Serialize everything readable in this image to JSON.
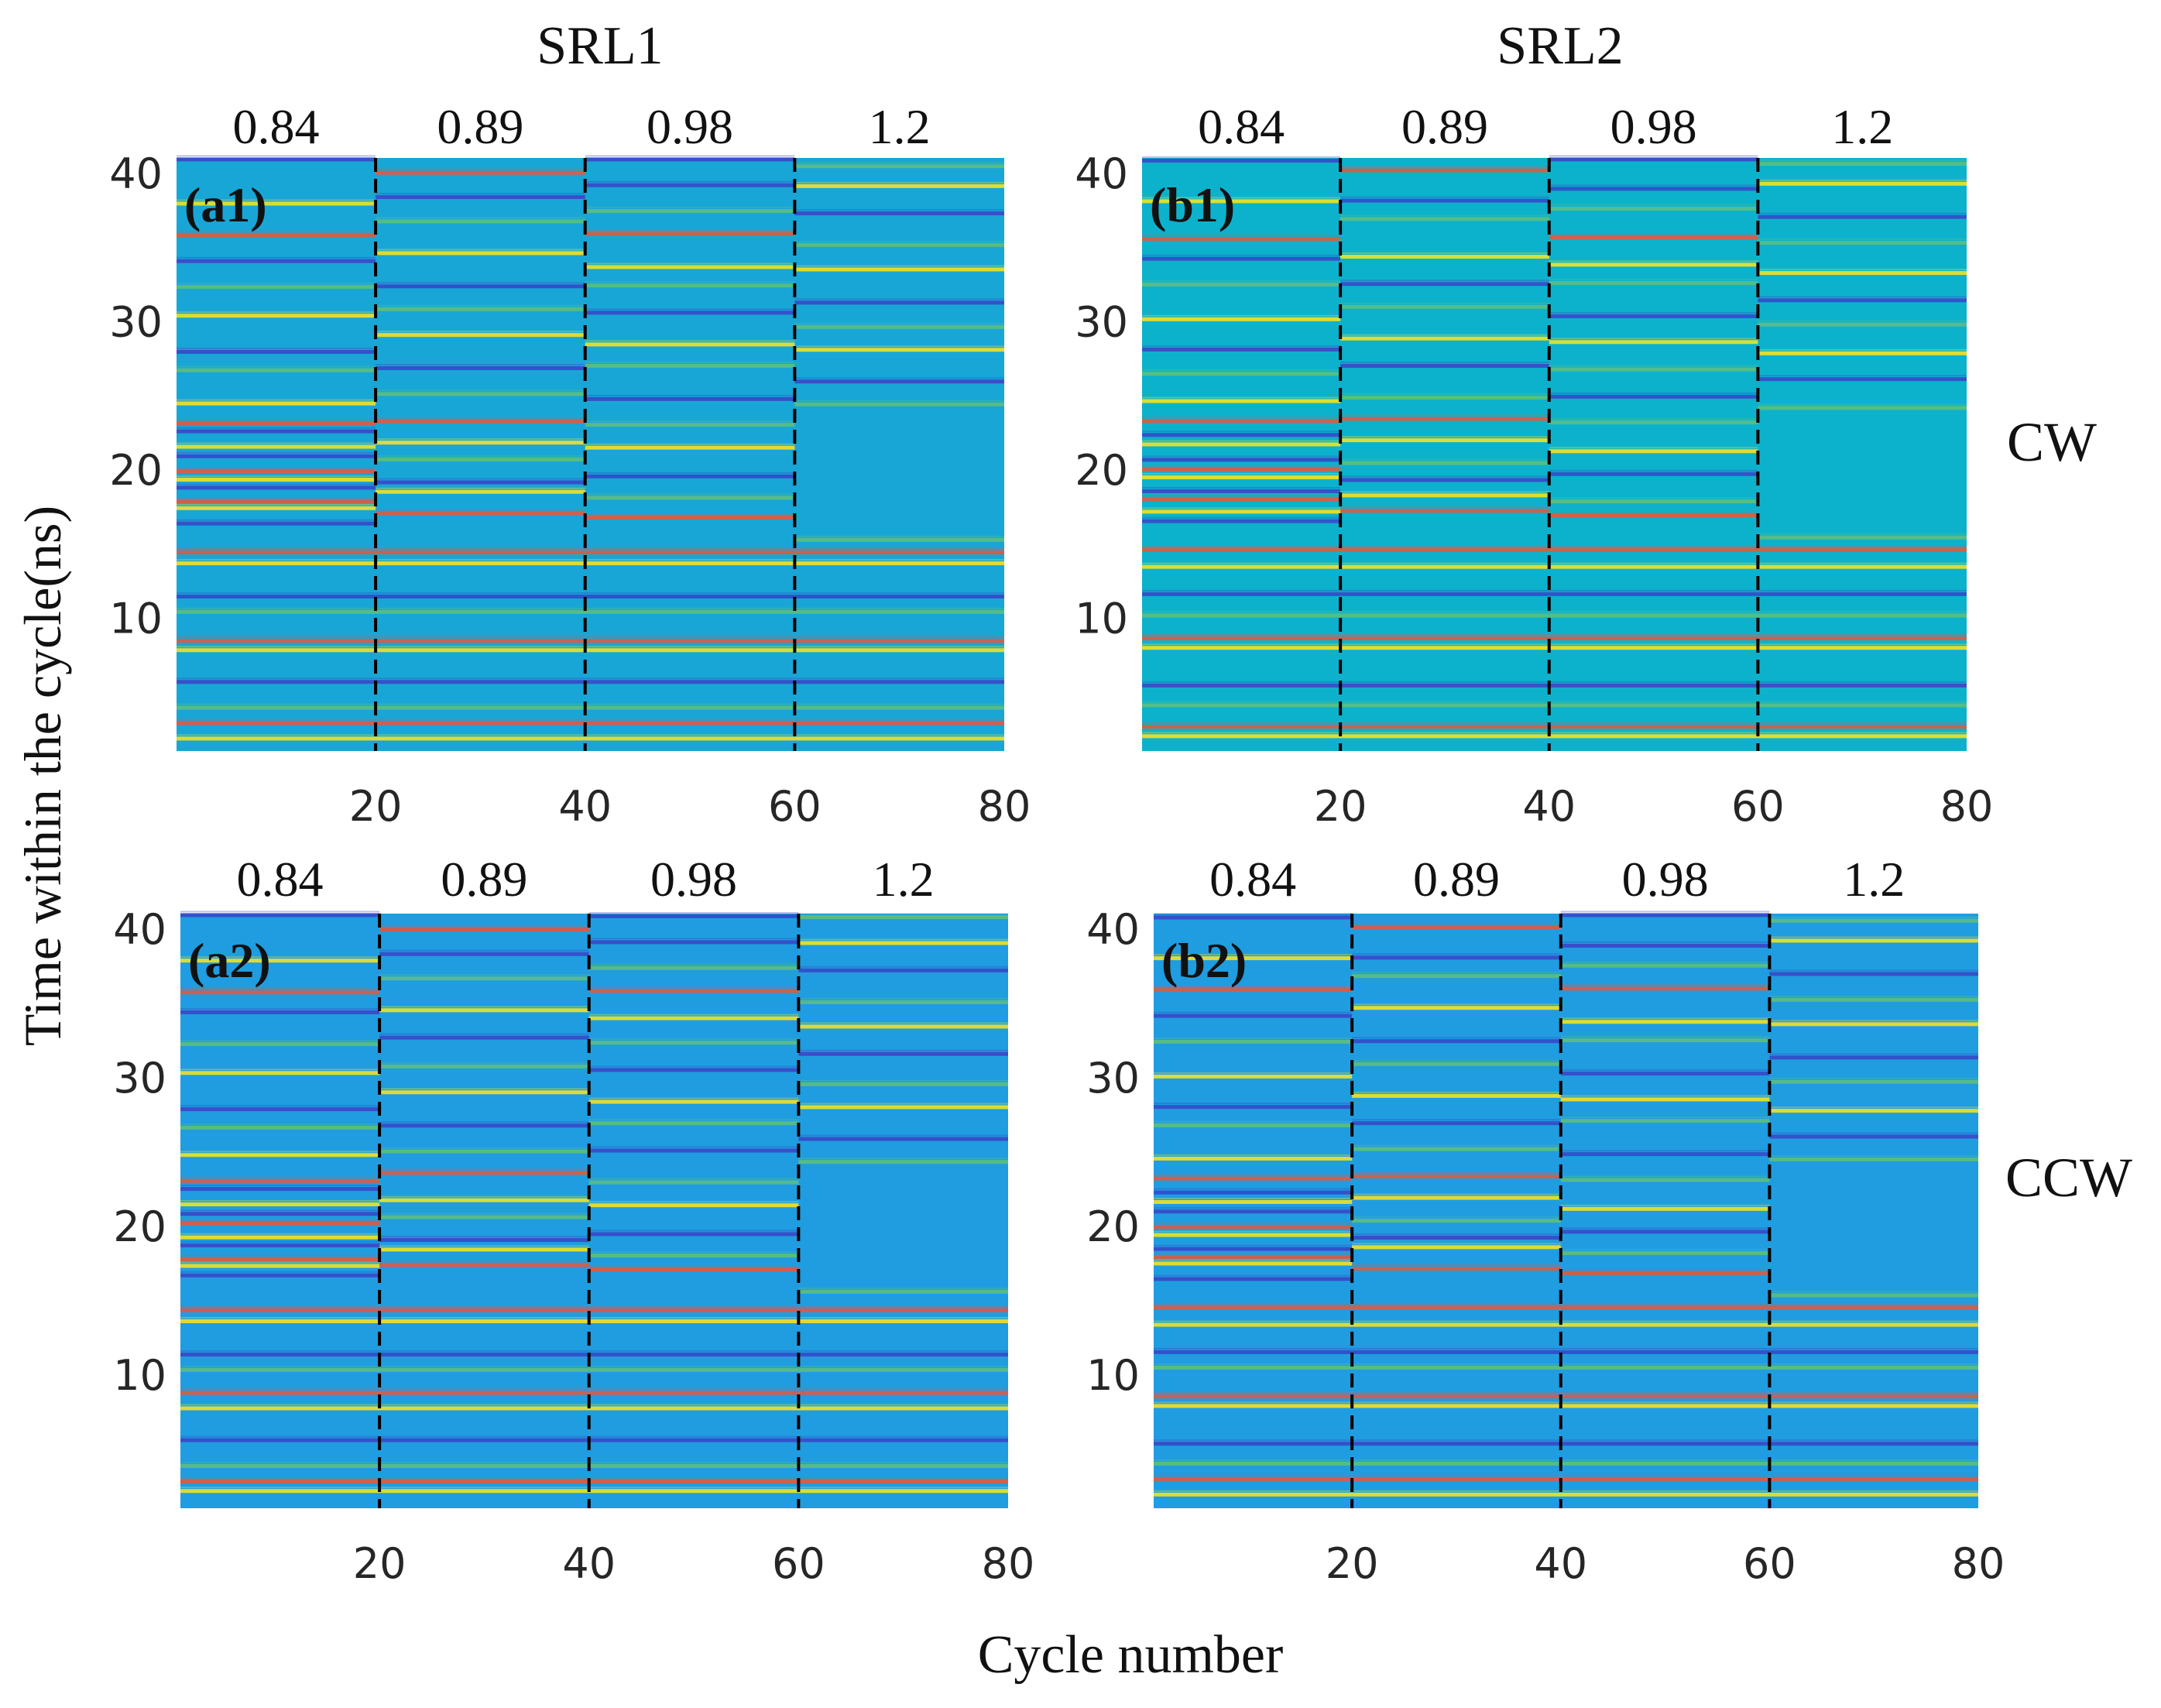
{
  "figure": {
    "column_titles": [
      "SRL1",
      "SRL2"
    ],
    "row_labels": [
      "CW",
      "CCW"
    ],
    "xlabel": "Cycle number",
    "ylabel": "Time within the cycle(ns)"
  },
  "colors": {
    "background_cw_srl1": "#18a6d6",
    "background_cw_srl2": "#0cb2cc",
    "background_ccw": "#1f9de0",
    "line_yellow": "#f2e222",
    "line_red": "#e05a3e",
    "line_dark_blue": "#3848c8",
    "line_green": "#5cbf7e",
    "divider": "#000000"
  },
  "chart_data": [
    {
      "id": "a1",
      "panel_label": "(a1)",
      "type": "heatmap",
      "column": "SRL1",
      "direction": "CW",
      "x_range": [
        1,
        80
      ],
      "y_range": [
        1,
        41
      ],
      "xticks": [
        "20",
        "40",
        "60",
        "80"
      ],
      "yticks": [
        "10",
        "20",
        "30",
        "40"
      ],
      "segment_labels": [
        "0.84",
        "0.89",
        "0.98",
        "1.2"
      ],
      "segment_boundaries": [
        20,
        40,
        60
      ],
      "background": "#18a6d6"
    },
    {
      "id": "b1",
      "panel_label": "(b1)",
      "type": "heatmap",
      "column": "SRL2",
      "direction": "CW",
      "x_range": [
        1,
        80
      ],
      "y_range": [
        1,
        41
      ],
      "xticks": [
        "20",
        "40",
        "60",
        "80"
      ],
      "yticks": [
        "10",
        "20",
        "30",
        "40"
      ],
      "segment_labels": [
        "0.84",
        "0.89",
        "0.98",
        "1.2"
      ],
      "segment_boundaries": [
        20,
        40,
        60
      ],
      "background": "#0cb2cc"
    },
    {
      "id": "a2",
      "panel_label": "(a2)",
      "type": "heatmap",
      "column": "SRL1",
      "direction": "CCW",
      "x_range": [
        1,
        80
      ],
      "y_range": [
        1,
        41
      ],
      "xticks": [
        "20",
        "40",
        "60",
        "80"
      ],
      "yticks": [
        "10",
        "20",
        "30",
        "40"
      ],
      "segment_labels": [
        "0.84",
        "0.89",
        "0.98",
        "1.2"
      ],
      "segment_boundaries": [
        20,
        40,
        60
      ],
      "background": "#1f9de0"
    },
    {
      "id": "b2",
      "panel_label": "(b2)",
      "type": "heatmap",
      "column": "SRL2",
      "direction": "CCW",
      "x_range": [
        1,
        80
      ],
      "y_range": [
        1,
        41
      ],
      "xticks": [
        "20",
        "40",
        "60",
        "80"
      ],
      "yticks": [
        "10",
        "20",
        "30",
        "40"
      ],
      "segment_labels": [
        "0.84",
        "0.89",
        "0.98",
        "1.2"
      ],
      "segment_boundaries": [
        20,
        40,
        60
      ],
      "background": "#1f9de0"
    }
  ],
  "line_patterns": {
    "common": [
      {
        "t": 2.0,
        "c": "y"
      },
      {
        "t": 2.8,
        "c": "r"
      },
      {
        "t": 4.0,
        "c": "g"
      },
      {
        "t": 5.5,
        "c": "d"
      },
      {
        "t": 7.8,
        "c": "y"
      },
      {
        "t": 8.6,
        "c": "r"
      },
      {
        "t": 10.3,
        "c": "g"
      },
      {
        "t": 11.5,
        "c": "d"
      },
      {
        "t": 13.5,
        "c": "y"
      },
      {
        "t": 14.4,
        "c": "r"
      }
    ],
    "segments": [
      [
        {
          "t": 16.5,
          "c": "d"
        },
        {
          "t": 17.3,
          "c": "y"
        },
        {
          "t": 17.9,
          "c": "r"
        },
        {
          "t": 18.6,
          "c": "d"
        },
        {
          "t": 19.3,
          "c": "y"
        },
        {
          "t": 20.0,
          "c": "r"
        },
        {
          "t": 20.8,
          "c": "d"
        },
        {
          "t": 21.6,
          "c": "y"
        },
        {
          "t": 22.4,
          "c": "d"
        },
        {
          "t": 23.1,
          "c": "r"
        },
        {
          "t": 24.6,
          "c": "y"
        },
        {
          "t": 26.6,
          "c": "g"
        },
        {
          "t": 28.0,
          "c": "d"
        },
        {
          "t": 30.2,
          "c": "y"
        },
        {
          "t": 32.3,
          "c": "g"
        },
        {
          "t": 34.2,
          "c": "d"
        },
        {
          "t": 35.7,
          "c": "r"
        },
        {
          "t": 38.0,
          "c": "y"
        },
        {
          "t": 40.9,
          "c": "d"
        }
      ],
      [
        {
          "t": 17.2,
          "c": "r"
        },
        {
          "t": 18.4,
          "c": "y"
        },
        {
          "t": 19.2,
          "c": "d"
        },
        {
          "t": 20.5,
          "c": "g"
        },
        {
          "t": 21.8,
          "c": "y"
        },
        {
          "t": 23.4,
          "c": "r"
        },
        {
          "t": 25.0,
          "c": "g"
        },
        {
          "t": 26.9,
          "c": "d"
        },
        {
          "t": 28.9,
          "c": "y"
        },
        {
          "t": 30.8,
          "c": "g"
        },
        {
          "t": 32.5,
          "c": "d"
        },
        {
          "t": 34.5,
          "c": "y"
        },
        {
          "t": 36.8,
          "c": "g"
        },
        {
          "t": 38.2,
          "c": "d"
        },
        {
          "t": 40.0,
          "c": "r"
        }
      ],
      [
        {
          "t": 16.9,
          "c": "r"
        },
        {
          "t": 18.0,
          "c": "g"
        },
        {
          "t": 19.6,
          "c": "d"
        },
        {
          "t": 21.3,
          "c": "y"
        },
        {
          "t": 23.0,
          "c": "g"
        },
        {
          "t": 24.9,
          "c": "d"
        },
        {
          "t": 26.9,
          "c": "g"
        },
        {
          "t": 28.5,
          "c": "y"
        },
        {
          "t": 30.4,
          "c": "d"
        },
        {
          "t": 32.4,
          "c": "g"
        },
        {
          "t": 33.8,
          "c": "y"
        },
        {
          "t": 35.8,
          "c": "r"
        },
        {
          "t": 37.5,
          "c": "g"
        },
        {
          "t": 39.0,
          "c": "d"
        },
        {
          "t": 40.9,
          "c": "d"
        }
      ],
      [
        {
          "t": 15.4,
          "c": "g"
        },
        {
          "t": 24.3,
          "c": "g"
        },
        {
          "t": 26.0,
          "c": "d"
        },
        {
          "t": 27.9,
          "c": "y"
        },
        {
          "t": 29.6,
          "c": "g"
        },
        {
          "t": 31.4,
          "c": "d"
        },
        {
          "t": 33.4,
          "c": "y"
        },
        {
          "t": 35.2,
          "c": "g"
        },
        {
          "t": 37.1,
          "c": "d"
        },
        {
          "t": 39.1,
          "c": "y"
        },
        {
          "t": 40.6,
          "c": "g"
        }
      ]
    ]
  }
}
